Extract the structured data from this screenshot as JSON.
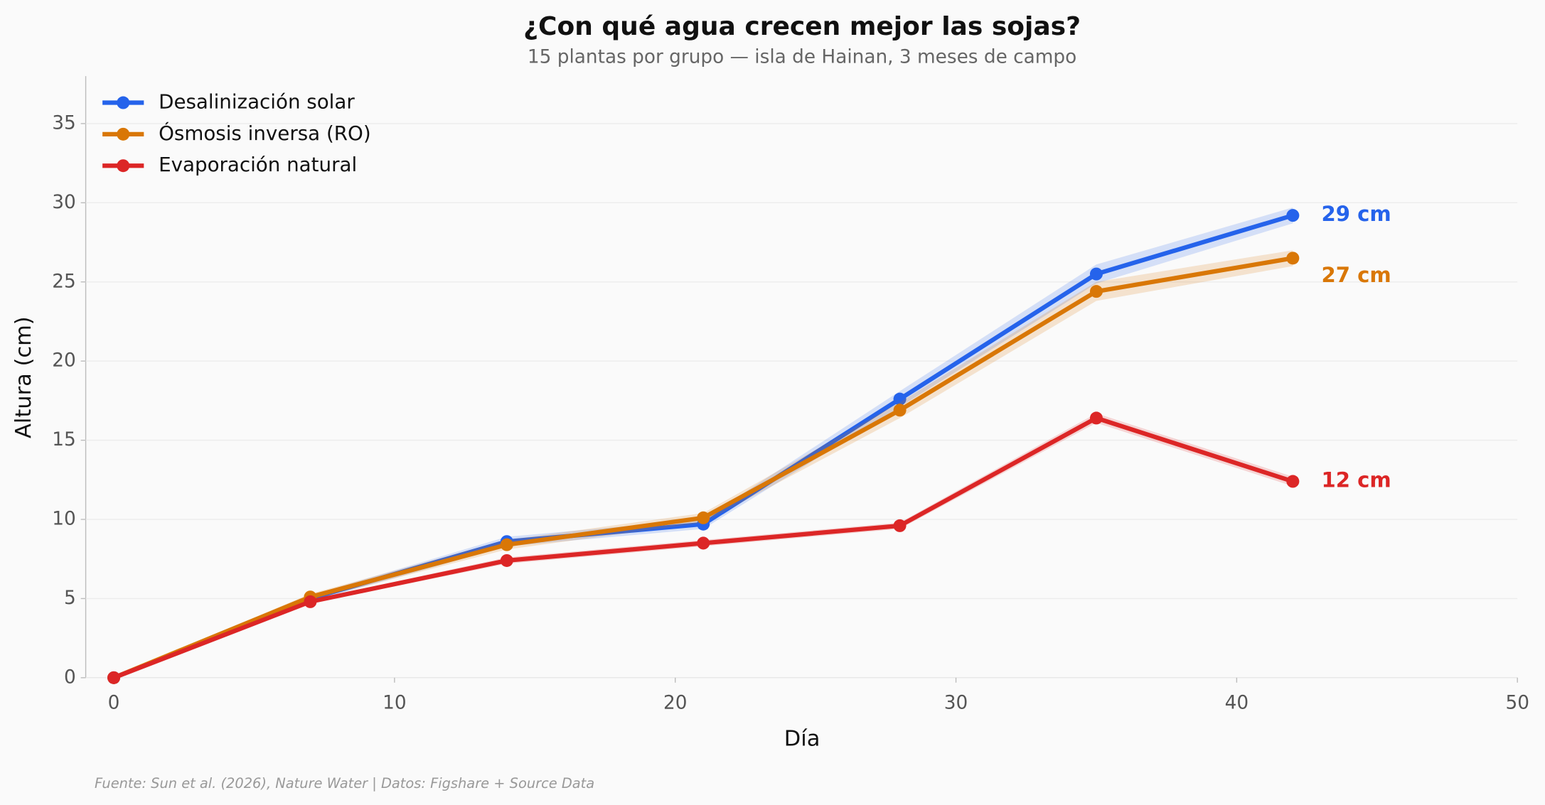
{
  "chart_data": {
    "type": "line",
    "title": "¿Con qué agua crecen mejor las sojas?",
    "subtitle": "15 plantas por grupo — isla de Hainan, 3 meses de campo",
    "x_label": "Día",
    "y_label": "Altura (cm)",
    "source": "Fuente: Sun et al. (2026), Nature Water | Datos: Figshare + Source Data",
    "x": [
      0,
      7,
      14,
      21,
      28,
      35,
      42
    ],
    "series": [
      {
        "name": "Desalinización solar",
        "color": "#2563eb",
        "values": [
          0,
          5.0,
          8.6,
          9.7,
          17.6,
          25.5,
          29.2
        ],
        "error": [
          0,
          0.2,
          0.3,
          0.3,
          0.5,
          0.6,
          0.5
        ],
        "end_label": "29 cm"
      },
      {
        "name": "Ósmosis inversa (RO)",
        "color": "#d97706",
        "values": [
          0,
          5.1,
          8.4,
          10.1,
          16.9,
          24.4,
          26.5
        ],
        "error": [
          0,
          0.2,
          0.3,
          0.3,
          0.5,
          0.6,
          0.5
        ],
        "end_label": "27 cm"
      },
      {
        "name": "Evaporación natural",
        "color": "#dc2626",
        "values": [
          0,
          4.8,
          7.4,
          8.5,
          9.6,
          16.4,
          12.4
        ],
        "error": [
          0,
          0.1,
          0.2,
          0.2,
          0.2,
          0.3,
          0.3
        ],
        "end_label": "12 cm"
      }
    ],
    "xlim": [
      -1,
      50
    ],
    "ylim": [
      0,
      38
    ],
    "xticks": [
      0,
      10,
      20,
      30,
      40,
      50
    ],
    "yticks": [
      0,
      5,
      10,
      15,
      20,
      25,
      30,
      35
    ],
    "grid": true,
    "legend": "upper left"
  }
}
